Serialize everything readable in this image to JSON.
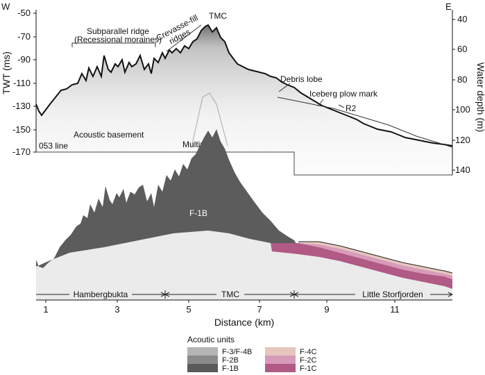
{
  "directions": {
    "west": "W",
    "east": "E"
  },
  "axes": {
    "left_label": "TWT (ms)",
    "left_ticks": [
      "-50",
      "-70",
      "-90",
      "-110",
      "-130",
      "-150",
      "-170"
    ],
    "right_label": "Water depth (m)",
    "right_ticks": [
      "40",
      "60",
      "80",
      "100",
      "120",
      "140"
    ],
    "x_label": "Distance (km)",
    "x_ticks": [
      "1",
      "3",
      "5",
      "7",
      "9",
      "11"
    ]
  },
  "annotations": {
    "subparallel": "Subparallel ridge",
    "recessional": "(Recessional moraines)",
    "crevasse_1": "Crevasse-fill",
    "crevasse_2": "ridges",
    "tmc_top": "TMC",
    "debris_lobe": "Debris lobe",
    "iceberg": "Iceberg plow mark",
    "r2": "R2",
    "acoustic_basement": "Acoustic basement",
    "multiple": "Multiple",
    "line_name": "053 line",
    "unit_f1b": "F-1B"
  },
  "regions": {
    "hambergbukta": "Hambergbukta",
    "tmc": "TMC",
    "little_storfjorden": "Little Storfjorden"
  },
  "legend": {
    "title": "Acoutic units",
    "items": [
      {
        "label": "F-3/F-4B",
        "color": "#b5b5b5"
      },
      {
        "label": "F-2B",
        "color": "#8a8a8a"
      },
      {
        "label": "F-1B",
        "color": "#5a5a5a"
      },
      {
        "label": "F-4C",
        "color": "#e6c6bd"
      },
      {
        "label": "F-2C",
        "color": "#d79bb9"
      },
      {
        "label": "F-1C",
        "color": "#b05a85"
      }
    ]
  },
  "colors": {
    "basement": "#ebebeb",
    "unit_f1b": "#5c5c5c",
    "unit_f1c": "#b05a85",
    "unit_f2c": "#d79bb9",
    "unit_f4c": "#e6c6bd"
  }
}
